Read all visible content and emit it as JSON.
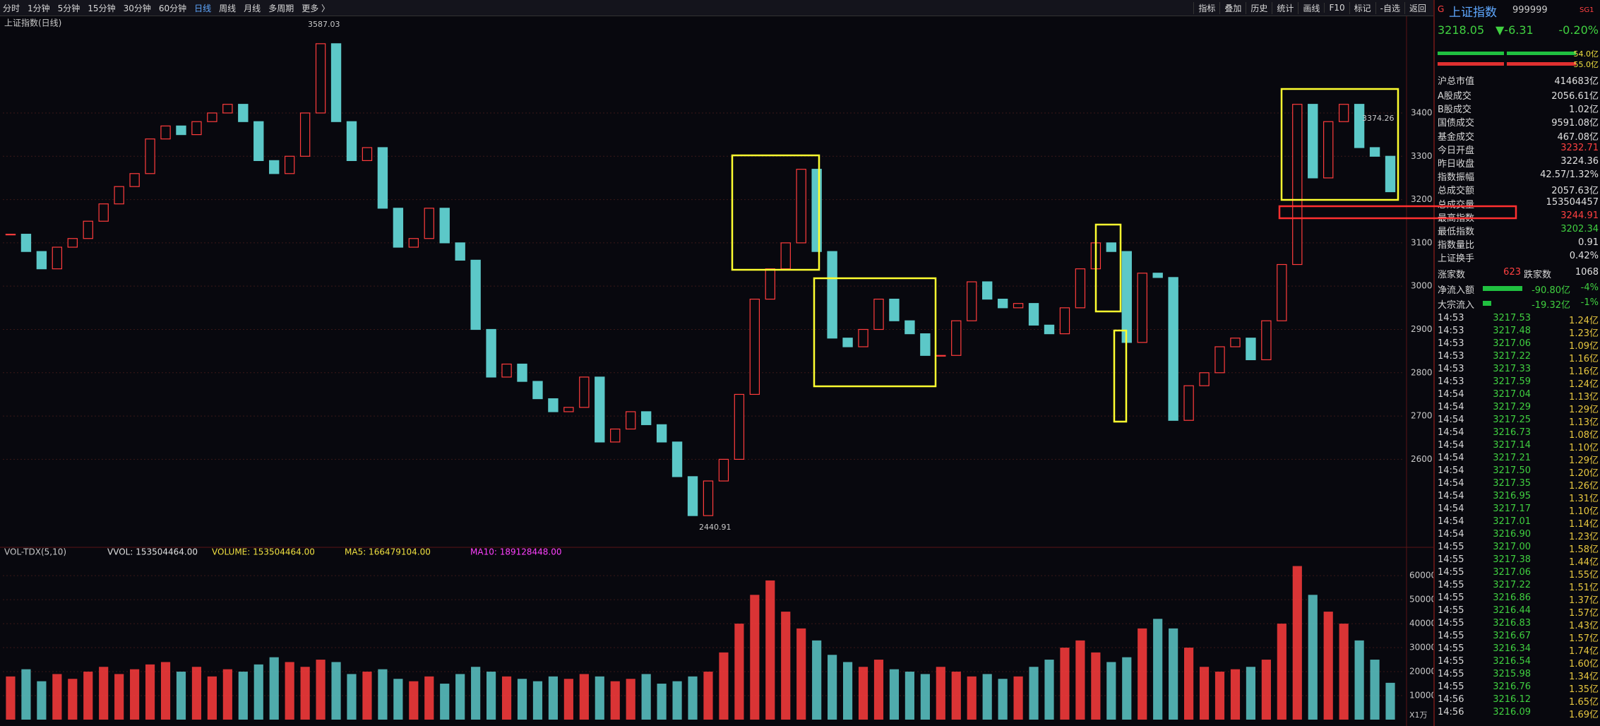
{
  "toolbar": {
    "periods": [
      "分时",
      "1分钟",
      "5分钟",
      "15分钟",
      "30分钟",
      "60分钟",
      "日线",
      "周线",
      "月线",
      "多周期",
      "更多 〉"
    ],
    "tools": [
      "指标",
      "叠加",
      "历史",
      "统计",
      "画线",
      "F10",
      "标记",
      "-自选",
      "返回"
    ]
  },
  "chart_data": {
    "type": "candlestick",
    "title": "上证指数(日线)",
    "close": [
      3120,
      3080,
      3040,
      3090,
      3110,
      3150,
      3190,
      3230,
      3260,
      3340,
      3370,
      3350,
      3380,
      3400,
      3420,
      3380,
      3290,
      3260,
      3300,
      3400,
      3560,
      3380,
      3290,
      3320,
      3180,
      3090,
      3110,
      3180,
      3100,
      3060,
      2900,
      2790,
      2820,
      2780,
      2740,
      2710,
      2720,
      2790,
      2640,
      2670,
      2710,
      2680,
      2640,
      2560,
      2470,
      2550,
      2600,
      2750,
      2970,
      3040,
      3100,
      3270,
      3080,
      2880,
      2860,
      2900,
      2970,
      2920,
      2890,
      2840,
      2840,
      2920,
      3010,
      2970,
      2950,
      2960,
      2910,
      2890,
      2950,
      3040,
      3100,
      3080,
      2870,
      3030,
      3020,
      2690,
      2770,
      2800,
      2860,
      2880,
      2830,
      2920,
      3050,
      3420,
      3250,
      3380,
      3420,
      3320,
      3300,
      3218.05
    ],
    "ylim": [
      2400,
      3612
    ],
    "yticks": [
      2600,
      2700,
      2800,
      2900,
      3000,
      3100,
      3200,
      3300,
      3400
    ],
    "grid": true,
    "up_color": "#ff3c3c",
    "down_color": "#5cc8c8",
    "annotations": [
      "3587.03",
      "2440.91",
      "3374.26"
    ],
    "volume": {
      "title": "VOL-TDX(5,10)",
      "legend": [
        "VVOL: 153504464.00",
        "VOLUME: 153504464.00",
        "MA5: 166479104.00",
        "MA10: 189128448.00"
      ],
      "values": [
        18000,
        21000,
        16000,
        19000,
        17000,
        20000,
        22000,
        19000,
        21000,
        23000,
        24000,
        20000,
        22000,
        18000,
        21000,
        20000,
        23000,
        26000,
        24000,
        22000,
        25000,
        24000,
        19000,
        20000,
        21000,
        17000,
        16000,
        18000,
        15000,
        19000,
        22000,
        20000,
        18000,
        17000,
        16000,
        18000,
        17000,
        19000,
        18000,
        16000,
        17000,
        19000,
        15000,
        16000,
        18000,
        20000,
        28000,
        40000,
        52000,
        58000,
        45000,
        38000,
        33000,
        27000,
        24000,
        22000,
        25000,
        21000,
        20000,
        19000,
        22000,
        20000,
        18000,
        19000,
        17000,
        18000,
        22000,
        25000,
        30000,
        33000,
        28000,
        24000,
        26000,
        38000,
        42000,
        38000,
        30000,
        22000,
        20000,
        21000,
        22000,
        25000,
        40000,
        64000,
        52000,
        45000,
        40000,
        33000,
        25000,
        15350
      ],
      "ylim": [
        0,
        66800
      ],
      "yticks": [
        10000,
        20000,
        30000,
        40000,
        50000,
        60000
      ],
      "unit": "X1万"
    }
  },
  "quote": {
    "mark": "G",
    "name": "上证指数",
    "code": "999999",
    "tag": "SG1",
    "price": "3218.05",
    "change": "▼-6.31",
    "pct": "-0.20%",
    "bars": [
      "54.0亿",
      "55.0亿"
    ],
    "stats": [
      [
        "沪总市值",
        "414683亿"
      ],
      [
        "A股成交",
        "2056.61亿"
      ],
      [
        "B股成交",
        "1.02亿"
      ],
      [
        "国债成交",
        "9591.08亿"
      ],
      [
        "基金成交",
        "467.08亿"
      ],
      [
        "今日开盘",
        "3232.71"
      ],
      [
        "昨日收盘",
        "3224.36"
      ],
      [
        "指数振幅",
        "42.57/1.32%"
      ],
      [
        "总成交额",
        "2057.63亿"
      ],
      [
        "总成交量",
        "153504457"
      ],
      [
        "最高指数",
        "3244.91"
      ],
      [
        "最低指数",
        "3202.34"
      ],
      [
        "指数量比",
        "0.91"
      ],
      [
        "上证换手",
        "0.42%"
      ]
    ],
    "breadth": [
      "涨家数",
      "623",
      "跌家数",
      "1068"
    ],
    "flows": [
      [
        "净流入额",
        "-90.80亿",
        "-4%"
      ],
      [
        "大宗流入",
        "-19.32亿",
        "-1%"
      ]
    ],
    "ticks": [
      [
        "14:53",
        "3217.53",
        "1.24亿"
      ],
      [
        "14:53",
        "3217.48",
        "1.23亿"
      ],
      [
        "14:53",
        "3217.06",
        "1.09亿"
      ],
      [
        "14:53",
        "3217.22",
        "1.16亿"
      ],
      [
        "14:53",
        "3217.33",
        "1.16亿"
      ],
      [
        "14:53",
        "3217.59",
        "1.24亿"
      ],
      [
        "14:54",
        "3217.04",
        "1.13亿"
      ],
      [
        "14:54",
        "3217.29",
        "1.29亿"
      ],
      [
        "14:54",
        "3217.25",
        "1.13亿"
      ],
      [
        "14:54",
        "3216.73",
        "1.08亿"
      ],
      [
        "14:54",
        "3217.14",
        "1.10亿"
      ],
      [
        "14:54",
        "3217.21",
        "1.29亿"
      ],
      [
        "14:54",
        "3217.50",
        "1.20亿"
      ],
      [
        "14:54",
        "3217.35",
        "1.26亿"
      ],
      [
        "14:54",
        "3216.95",
        "1.31亿"
      ],
      [
        "14:54",
        "3217.17",
        "1.10亿"
      ],
      [
        "14:54",
        "3217.01",
        "1.14亿"
      ],
      [
        "14:54",
        "3216.90",
        "1.23亿"
      ],
      [
        "14:55",
        "3217.00",
        "1.58亿"
      ],
      [
        "14:55",
        "3217.38",
        "1.44亿"
      ],
      [
        "14:55",
        "3217.06",
        "1.55亿"
      ],
      [
        "14:55",
        "3217.22",
        "1.51亿"
      ],
      [
        "14:55",
        "3216.86",
        "1.37亿"
      ],
      [
        "14:55",
        "3216.44",
        "1.57亿"
      ],
      [
        "14:55",
        "3216.83",
        "1.43亿"
      ],
      [
        "14:55",
        "3216.67",
        "1.57亿"
      ],
      [
        "14:55",
        "3216.34",
        "1.74亿"
      ],
      [
        "14:55",
        "3216.54",
        "1.60亿"
      ],
      [
        "14:55",
        "3215.98",
        "1.34亿"
      ],
      [
        "14:55",
        "3216.76",
        "1.35亿"
      ],
      [
        "14:56",
        "3216.12",
        "1.65亿"
      ],
      [
        "14:56",
        "3216.09",
        "1.69亿"
      ]
    ]
  }
}
